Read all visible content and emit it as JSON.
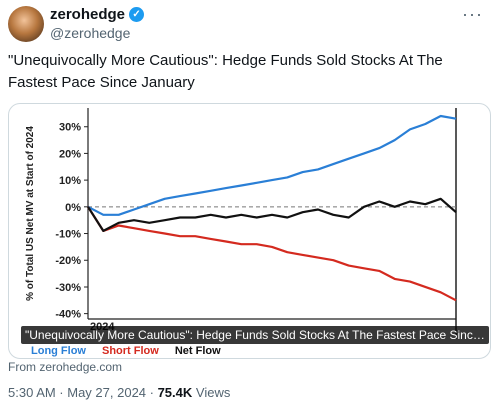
{
  "tweet": {
    "display_name": "zerohedge",
    "handle": "@zerohedge",
    "text": "\"Unequivocally More Cautious\": Hedge Funds Sold Stocks At The Fastest Pace Since January",
    "more_label": "···",
    "verified_glyph": "✓"
  },
  "card": {
    "caption": "\"Unequivocally More Cautious\": Hedge Funds Sold Stocks At The Fastest Pace Since Jan...",
    "source": "From zerohedge.com"
  },
  "meta": {
    "time": "5:30 AM · May 27, 2024 · ",
    "views_count": "75.4K",
    "views_label": " Views"
  },
  "colors": {
    "long": "#2a7fd6",
    "short": "#d42a1f",
    "net": "#111111",
    "verified": "#1d9bf0"
  },
  "chart_data": {
    "type": "line",
    "ylabel": "% of Total US Net MV at Start of 2024",
    "ylim": [
      -42,
      37
    ],
    "yticks": [
      30,
      20,
      10,
      0,
      -10,
      -20,
      -30,
      -40
    ],
    "ytick_labels": [
      "30%",
      "20%",
      "10%",
      "0%",
      "-10%",
      "-20%",
      "-30%",
      "-40%"
    ],
    "xlabel_tick": "2024",
    "zero_line_dashed": true,
    "x_count": 25,
    "series": [
      {
        "name": "Long Flow",
        "color": "#2a7fd6",
        "values": [
          0,
          -3,
          -3,
          -1,
          1,
          3,
          4,
          5,
          6,
          7,
          8,
          9,
          10,
          11,
          13,
          14,
          16,
          18,
          20,
          22,
          25,
          29,
          31,
          34,
          33
        ]
      },
      {
        "name": "Short Flow",
        "color": "#d42a1f",
        "values": [
          0,
          -9,
          -7,
          -8,
          -9,
          -10,
          -11,
          -11,
          -12,
          -13,
          -14,
          -14,
          -15,
          -17,
          -18,
          -19,
          -20,
          -22,
          -23,
          -24,
          -27,
          -28,
          -30,
          -32,
          -35
        ]
      },
      {
        "name": "Net Flow",
        "color": "#111111",
        "values": [
          0,
          -9,
          -6,
          -5,
          -6,
          -5,
          -4,
          -4,
          -3,
          -4,
          -3,
          -4,
          -3,
          -4,
          -2,
          -1,
          -3,
          -4,
          0,
          2,
          0,
          2,
          1,
          3,
          -2
        ]
      }
    ]
  }
}
